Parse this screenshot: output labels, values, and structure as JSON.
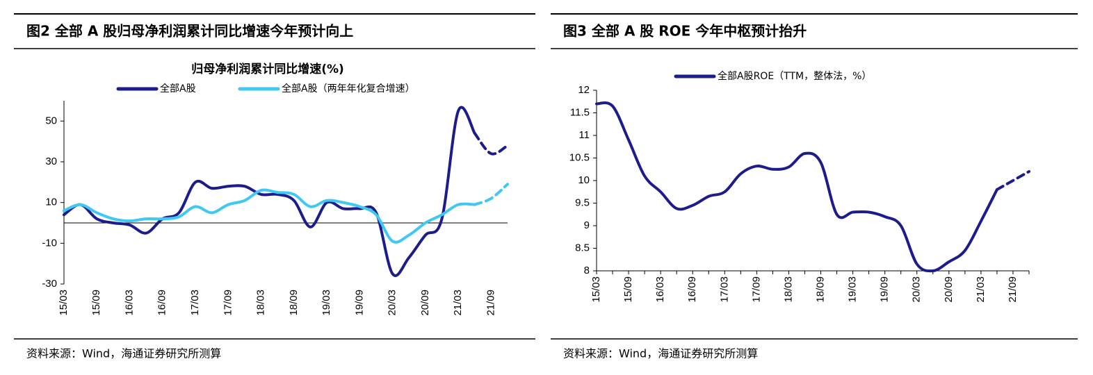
{
  "chart_data": [
    {
      "type": "line",
      "panel_title": "图2  全部 A 股归母净利润累计同比增速今年预计向上",
      "title": "归母净利润累计同比增速(%)",
      "categories": [
        "15/03",
        null,
        "15/09",
        null,
        "16/03",
        null,
        "16/09",
        null,
        "17/03",
        null,
        "17/09",
        null,
        "18/03",
        null,
        "18/09",
        null,
        "19/03",
        null,
        "19/09",
        null,
        "20/03",
        null,
        "20/09",
        null,
        "21/03",
        null,
        "21/09",
        null
      ],
      "series": [
        {
          "name": "全部A股",
          "color": "#1c1c8c",
          "values": [
            4,
            9,
            2,
            0,
            -1,
            -5,
            2,
            5,
            20,
            17,
            18,
            18,
            14,
            14,
            11,
            -2,
            10,
            7,
            7,
            5,
            -25,
            -17,
            -6,
            2,
            55,
            44,
            34,
            38
          ]
        },
        {
          "name": "全部A股（两年年化复合增速）",
          "color": "#3fc8f4",
          "values": [
            6,
            9,
            5,
            2,
            1,
            2,
            2,
            3,
            8,
            5,
            9,
            11,
            16,
            15,
            14,
            8,
            11,
            10,
            8,
            4,
            -9,
            -6,
            0,
            4,
            9,
            9,
            12,
            19
          ]
        }
      ],
      "dashed_from_index": 25,
      "ylim": [
        -30,
        60
      ],
      "yticks": [
        -30,
        -10,
        10,
        30,
        50
      ],
      "source": "资料来源：Wind，海通证券研究所测算"
    },
    {
      "type": "line",
      "panel_title": "图3  全部 A 股 ROE 今年中枢预计抬升",
      "categories": [
        "15/03",
        null,
        "15/09",
        null,
        "16/03",
        null,
        "16/09",
        null,
        "17/03",
        null,
        "17/09",
        null,
        "18/03",
        null,
        "18/09",
        null,
        "19/03",
        null,
        "19/09",
        null,
        "20/03",
        null,
        "20/09",
        null,
        "21/03",
        null,
        "21/09",
        null
      ],
      "series": [
        {
          "name": "全部A股ROE（TTM，整体法，%）",
          "color": "#1c1c8c",
          "values": [
            11.7,
            11.65,
            10.9,
            10.1,
            9.75,
            9.38,
            9.45,
            9.65,
            9.75,
            10.15,
            10.32,
            10.25,
            10.3,
            10.6,
            10.4,
            9.25,
            9.3,
            9.3,
            9.2,
            9.0,
            8.15,
            8.0,
            8.2,
            8.45,
            9.1,
            9.8,
            10.0,
            10.2
          ]
        }
      ],
      "dashed_from_index": 25,
      "ylim": [
        8,
        12
      ],
      "yticks": [
        8,
        8.5,
        9,
        9.5,
        10,
        10.5,
        11,
        11.5,
        12
      ],
      "source": "资料来源：Wind，海通证券研究所测算"
    }
  ]
}
